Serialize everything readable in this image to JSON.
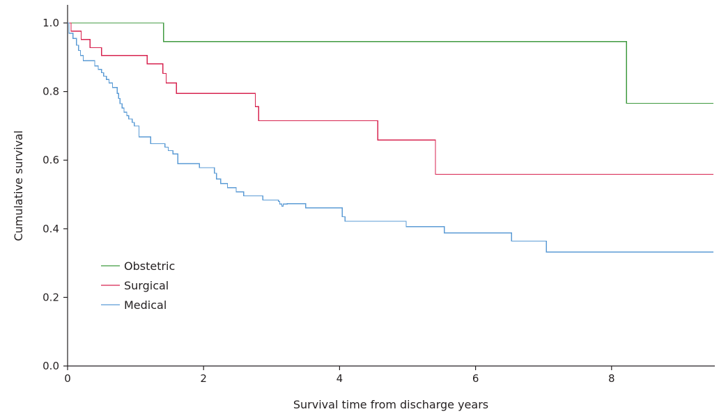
{
  "chart_data": {
    "type": "line",
    "step": true,
    "xlabel": "Survival time from discharge years",
    "ylabel": "Cumulative survival",
    "xlim": [
      0,
      9.5
    ],
    "ylim": [
      0,
      1.05
    ],
    "x_ticks": [
      0,
      2,
      4,
      6,
      8
    ],
    "x_tick_labels": [
      "0",
      "2",
      "4",
      "6",
      "8"
    ],
    "y_ticks": [
      0,
      0.2,
      0.4,
      0.6,
      0.8,
      1.0
    ],
    "y_tick_labels": [
      "0.0",
      "0.2",
      "0.4",
      "0.6",
      "0.8",
      "1.0"
    ],
    "grid": false,
    "legend_position": "center-left",
    "series": [
      {
        "name": "Obstetric",
        "color": "#3f9a3f",
        "points": [
          [
            0,
            1.0
          ],
          [
            1.41,
            0.946
          ],
          [
            8.22,
            0.766
          ],
          [
            9.5,
            0.766
          ]
        ]
      },
      {
        "name": "Surgical",
        "color": "#d7234f",
        "points": [
          [
            0,
            1.0
          ],
          [
            0.05,
            0.976
          ],
          [
            0.2,
            0.952
          ],
          [
            0.33,
            0.928
          ],
          [
            0.5,
            0.905
          ],
          [
            1.17,
            0.881
          ],
          [
            1.4,
            0.853
          ],
          [
            1.45,
            0.825
          ],
          [
            1.6,
            0.795
          ],
          [
            2.76,
            0.756
          ],
          [
            2.81,
            0.715
          ],
          [
            4.56,
            0.659
          ],
          [
            5.41,
            0.559
          ],
          [
            9.5,
            0.559
          ]
        ]
      },
      {
        "name": "Medical",
        "color": "#5b9bd5",
        "points": [
          [
            0,
            1.0
          ],
          [
            0.02,
            0.97
          ],
          [
            0.08,
            0.955
          ],
          [
            0.13,
            0.935
          ],
          [
            0.16,
            0.92
          ],
          [
            0.19,
            0.905
          ],
          [
            0.23,
            0.89
          ],
          [
            0.4,
            0.875
          ],
          [
            0.45,
            0.865
          ],
          [
            0.5,
            0.855
          ],
          [
            0.53,
            0.845
          ],
          [
            0.57,
            0.835
          ],
          [
            0.61,
            0.825
          ],
          [
            0.66,
            0.812
          ],
          [
            0.73,
            0.795
          ],
          [
            0.75,
            0.78
          ],
          [
            0.77,
            0.765
          ],
          [
            0.8,
            0.752
          ],
          [
            0.83,
            0.74
          ],
          [
            0.87,
            0.73
          ],
          [
            0.9,
            0.72
          ],
          [
            0.95,
            0.71
          ],
          [
            0.98,
            0.7
          ],
          [
            1.05,
            0.668
          ],
          [
            1.22,
            0.648
          ],
          [
            1.43,
            0.638
          ],
          [
            1.48,
            0.628
          ],
          [
            1.55,
            0.618
          ],
          [
            1.62,
            0.59
          ],
          [
            1.94,
            0.578
          ],
          [
            2.16,
            0.562
          ],
          [
            2.19,
            0.545
          ],
          [
            2.25,
            0.532
          ],
          [
            2.35,
            0.52
          ],
          [
            2.48,
            0.508
          ],
          [
            2.59,
            0.496
          ],
          [
            2.87,
            0.484
          ],
          [
            3.1,
            0.48
          ],
          [
            3.12,
            0.472
          ],
          [
            3.15,
            0.466
          ],
          [
            3.23,
            0.473
          ],
          [
            3.17,
            0.472
          ],
          [
            3.5,
            0.461
          ],
          [
            4.04,
            0.435
          ],
          [
            4.08,
            0.422
          ],
          [
            4.98,
            0.406
          ],
          [
            5.54,
            0.388
          ],
          [
            6.53,
            0.364
          ],
          [
            7.04,
            0.332
          ],
          [
            9.5,
            0.332
          ]
        ]
      }
    ]
  }
}
